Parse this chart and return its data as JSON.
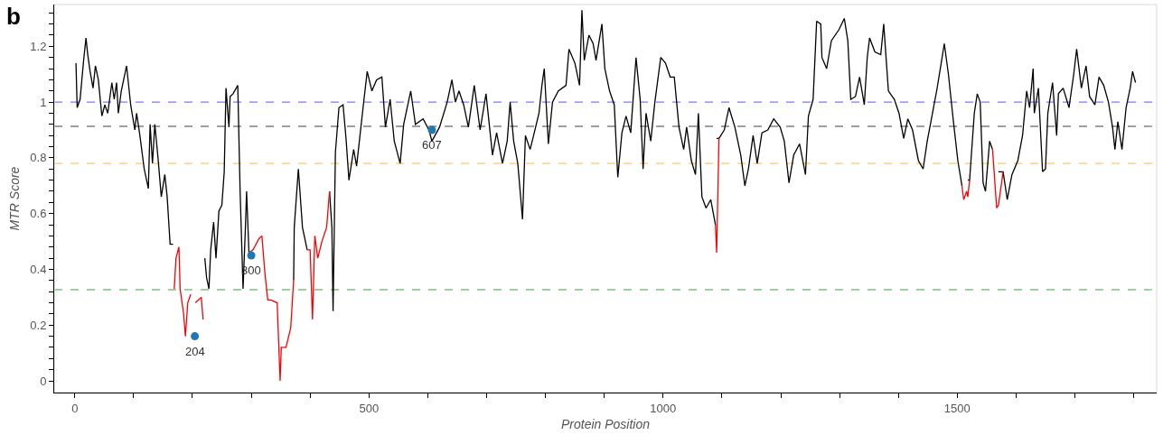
{
  "chart_data": {
    "type": "line",
    "xlabel": "Protein Position",
    "ylabel": "MTR Score",
    "xlim": [
      -35,
      1839
    ],
    "ylim": [
      -0.042,
      1.35
    ],
    "xticks": [
      0,
      {
        "value": 100,
        "label": null
      },
      {
        "value": 200,
        "label": null
      },
      {
        "value": 300,
        "label": null
      },
      {
        "value": 400,
        "label": null
      },
      500,
      {
        "value": 600,
        "label": null
      },
      {
        "value": 700,
        "label": null
      },
      {
        "value": 800,
        "label": null
      },
      {
        "value": 900,
        "label": null
      },
      1000,
      {
        "value": 1100,
        "label": null
      },
      {
        "value": 1200,
        "label": null
      },
      {
        "value": 1300,
        "label": null
      },
      {
        "value": 1400,
        "label": null
      },
      1500,
      {
        "value": 1600,
        "label": null
      },
      {
        "value": 1700,
        "label": null
      },
      {
        "value": 1800,
        "label": null
      }
    ],
    "yticks": [
      0,
      {
        "value": 0.04,
        "label": null
      },
      {
        "value": 0.08,
        "label": null
      },
      {
        "value": 0.12,
        "label": null
      },
      {
        "value": 0.16,
        "label": null
      },
      0.2,
      {
        "value": 0.24,
        "label": null
      },
      {
        "value": 0.28,
        "label": null
      },
      {
        "value": 0.32,
        "label": null
      },
      {
        "value": 0.36,
        "label": null
      },
      0.4,
      {
        "value": 0.44,
        "label": null
      },
      {
        "value": 0.48,
        "label": null
      },
      {
        "value": 0.52,
        "label": null
      },
      {
        "value": 0.56,
        "label": null
      },
      0.6,
      {
        "value": 0.64,
        "label": null
      },
      {
        "value": 0.68,
        "label": null
      },
      {
        "value": 0.72,
        "label": null
      },
      {
        "value": 0.76,
        "label": null
      },
      0.8,
      {
        "value": 0.84,
        "label": null
      },
      {
        "value": 0.88,
        "label": null
      },
      {
        "value": 0.92,
        "label": null
      },
      {
        "value": 0.96,
        "label": null
      },
      1,
      {
        "value": 1.04,
        "label": null
      },
      {
        "value": 1.08,
        "label": null
      },
      {
        "value": 1.12,
        "label": null
      },
      {
        "value": 1.16,
        "label": null
      },
      1.2,
      {
        "value": 1.24,
        "label": null
      },
      {
        "value": 1.28,
        "label": null
      },
      {
        "value": 1.32,
        "label": null
      }
    ],
    "grid": false,
    "line_style": "solid",
    "ref_lines": [
      {
        "axis": "y",
        "value": 1.0,
        "color": "#7b7bff",
        "line_style": "dashed"
      },
      {
        "axis": "y",
        "value": 0.913,
        "color": "#808080",
        "line_style": "dashed"
      },
      {
        "axis": "y",
        "value": 0.78,
        "color": "#ffc766",
        "line_style": "dashed"
      },
      {
        "axis": "y",
        "value": 0.327,
        "color": "#80c080",
        "line_style": "dashed"
      }
    ],
    "series": [
      {
        "marker": "none",
        "color": "#000000",
        "x": [
          2,
          4,
          9,
          15,
          19,
          22,
          26,
          31,
          35,
          40,
          46,
          51,
          56,
          63,
          67,
          71,
          74,
          79,
          88,
          95,
          102,
          105,
          110,
          118,
          125,
          128,
          132,
          136,
          141,
          147,
          153,
          157,
          162,
          167,
          169,
          194,
          218,
          221,
          224,
          228,
          231,
          236,
          240,
          245,
          250,
          254,
          257,
          262,
          264,
          269,
          277,
          281,
          286,
          290,
          292,
          296,
          334,
          372,
          373,
          380,
          387,
          395,
          414,
          433,
          437,
          439,
          443,
          449,
          456,
          461,
          466,
          474,
          479,
          490,
          497,
          505,
          513,
          522,
          528,
          536,
          543,
          553,
          559,
          571,
          579,
          592,
          602,
          607,
          620,
          633,
          641,
          647,
          653,
          661,
          669,
          679,
          689,
          699,
          710,
          717,
          727,
          735,
          740,
          746,
          753,
          761,
          766,
          774,
          781,
          789,
          794,
          798,
          805,
          812,
          822,
          835,
          840,
          850,
          858,
          862,
          866,
          874,
          881,
          886,
          896,
          901,
          909,
          917,
          923,
          930,
          937,
          945,
          954,
          961,
          966,
          971,
          979,
          986,
          996,
          1004,
          1012,
          1019,
          1027,
          1035,
          1040,
          1048,
          1055,
          1060,
          1066,
          1073,
          1081,
          1089,
          1090,
          1091,
          1095,
          1104,
          1112,
          1122,
          1132,
          1139,
          1145,
          1153,
          1160,
          1168,
          1178,
          1188,
          1199,
          1206,
          1214,
          1222,
          1232,
          1242,
          1247,
          1255,
          1261,
          1268,
          1270,
          1278,
          1286,
          1299,
          1308,
          1314,
          1319,
          1327,
          1334,
          1342,
          1347,
          1351,
          1360,
          1370,
          1375,
          1383,
          1393,
          1401,
          1409,
          1416,
          1424,
          1434,
          1442,
          1449,
          1457,
          1465,
          1472,
          1478,
          1485,
          1493,
          1501,
          1508,
          1513,
          1518,
          1521,
          1529,
          1534,
          1539,
          1544,
          1548,
          1555,
          1560,
          1565,
          1570,
          1578,
          1585,
          1593,
          1603,
          1611,
          1618,
          1623,
          1629,
          1631,
          1638,
          1645,
          1650,
          1654,
          1662,
          1669,
          1672,
          1680,
          1690,
          1698,
          1703,
          1711,
          1719,
          1725,
          1734,
          1741,
          1749,
          1757,
          1764,
          1768,
          1773,
          1780,
          1787,
          1794,
          1798,
          1803
        ],
        "values": [
          1.14,
          0.98,
          1.01,
          1.15,
          1.23,
          1.17,
          1.11,
          1.05,
          1.13,
          1.08,
          0.95,
          0.99,
          0.96,
          1.07,
          1.01,
          1.07,
          0.96,
          1.04,
          1.13,
          0.99,
          0.9,
          0.96,
          0.89,
          0.76,
          0.69,
          0.92,
          0.78,
          0.92,
          0.81,
          0.66,
          0.74,
          0.66,
          0.49,
          0.49,
          null,
          null,
          null,
          0.44,
          0.37,
          0.33,
          0.47,
          0.57,
          0.44,
          0.61,
          0.63,
          0.75,
          1.05,
          0.91,
          1.02,
          1.03,
          1.06,
          0.68,
          0.33,
          0.55,
          0.68,
          0.46,
          null,
          0.36,
          0.55,
          0.76,
          0.55,
          0.47,
          null,
          0.68,
          0.55,
          0.25,
          0.82,
          0.98,
          0.99,
          0.87,
          0.72,
          0.83,
          0.77,
          0.98,
          1.11,
          1.04,
          1.08,
          1.09,
          0.91,
          1.01,
          0.86,
          0.78,
          0.92,
          1.04,
          0.92,
          0.94,
          0.9,
          0.86,
          0.91,
          1.0,
          1.08,
          1.0,
          1.04,
          0.99,
          0.91,
          1.06,
          0.9,
          1.03,
          0.81,
          0.89,
          0.78,
          0.86,
          1.0,
          0.86,
          0.78,
          0.58,
          0.88,
          0.83,
          0.89,
          0.96,
          1.06,
          1.12,
          0.85,
          1.0,
          1.04,
          1.06,
          1.19,
          1.14,
          1.06,
          1.33,
          1.15,
          1.24,
          1.21,
          1.15,
          1.28,
          1.12,
          1.04,
          0.99,
          0.73,
          0.89,
          0.95,
          0.89,
          1.16,
          1.01,
          0.76,
          0.96,
          0.86,
          1.0,
          1.16,
          1.14,
          1.09,
          1.09,
          0.91,
          0.83,
          0.91,
          0.79,
          0.74,
          0.96,
          0.66,
          0.62,
          0.65,
          0.56,
          null,
          0.87,
          0.87,
          0.9,
          0.98,
          0.91,
          0.81,
          0.7,
          0.76,
          0.88,
          0.78,
          0.89,
          0.9,
          0.94,
          0.91,
          0.86,
          0.71,
          0.81,
          0.85,
          0.74,
          0.95,
          1.01,
          1.29,
          1.28,
          1.16,
          1.12,
          1.22,
          1.26,
          1.3,
          1.22,
          1.01,
          1.02,
          1.09,
          0.99,
          1.16,
          1.23,
          1.18,
          1.17,
          1.28,
          1.04,
          1.01,
          0.96,
          0.87,
          0.94,
          0.9,
          0.79,
          0.76,
          0.86,
          0.95,
          1.04,
          1.13,
          1.21,
          1.1,
          0.94,
          0.79,
          0.7,
          null,
          0.72,
          0.72,
          0.96,
          1.03,
          1.0,
          0.71,
          0.68,
          0.86,
          0.83,
          null,
          0.75,
          0.75,
          0.65,
          0.74,
          0.79,
          0.88,
          1.04,
          0.98,
          1.12,
          0.96,
          1.05,
          0.75,
          0.76,
          0.96,
          1.07,
          0.88,
          1.03,
          1.05,
          0.98,
          1.1,
          1.19,
          1.05,
          1.13,
          1.02,
          0.99,
          1.09,
          1.06,
          1.0,
          0.91,
          0.83,
          0.93,
          0.83,
          0.98,
          1.05,
          1.11,
          1.07
        ]
      },
      {
        "marker": "none",
        "color": "#ff0000",
        "x": [
          169,
          172,
          177,
          179,
          185,
          188,
          192,
          197,
          203,
          205,
          210,
          215,
          218,
          257,
          296,
          303,
          313,
          318,
          323,
          328,
          333,
          344,
          349,
          351,
          359,
          367,
          372,
          373,
          395,
          400,
          404,
          408,
          413,
          420,
          428,
          433,
          700,
          1089,
          1091,
          1095,
          1300,
          1508,
          1511,
          1516,
          1518,
          1521,
          1540,
          1560,
          1567,
          1570,
          1578
        ],
        "values": [
          0.33,
          0.44,
          0.48,
          0.33,
          0.24,
          0.16,
          0.28,
          0.31,
          null,
          0.28,
          0.29,
          0.3,
          0.22,
          null,
          0.46,
          0.47,
          0.51,
          0.52,
          0.39,
          0.29,
          0.29,
          0.28,
          0.0,
          0.12,
          0.12,
          0.19,
          0.36,
          null,
          0.47,
          0.47,
          0.22,
          0.52,
          0.44,
          0.5,
          0.55,
          0.68,
          null,
          0.56,
          0.46,
          0.87,
          null,
          0.7,
          0.65,
          0.68,
          0.66,
          0.72,
          null,
          0.83,
          0.62,
          0.63,
          0.75
        ]
      },
      {
        "type": "scatter",
        "marker": "circle",
        "color": "#1f77b4",
        "x": [
          204,
          300,
          607
        ],
        "values": [
          0.16,
          0.45,
          0.9
        ]
      }
    ],
    "annotations": [
      "b",
      {
        "text": "204",
        "x": 204,
        "y": 0.16
      },
      {
        "text": "300",
        "x": 300,
        "y": 0.45
      },
      {
        "text": "607",
        "x": 607,
        "y": 0.9
      }
    ]
  }
}
